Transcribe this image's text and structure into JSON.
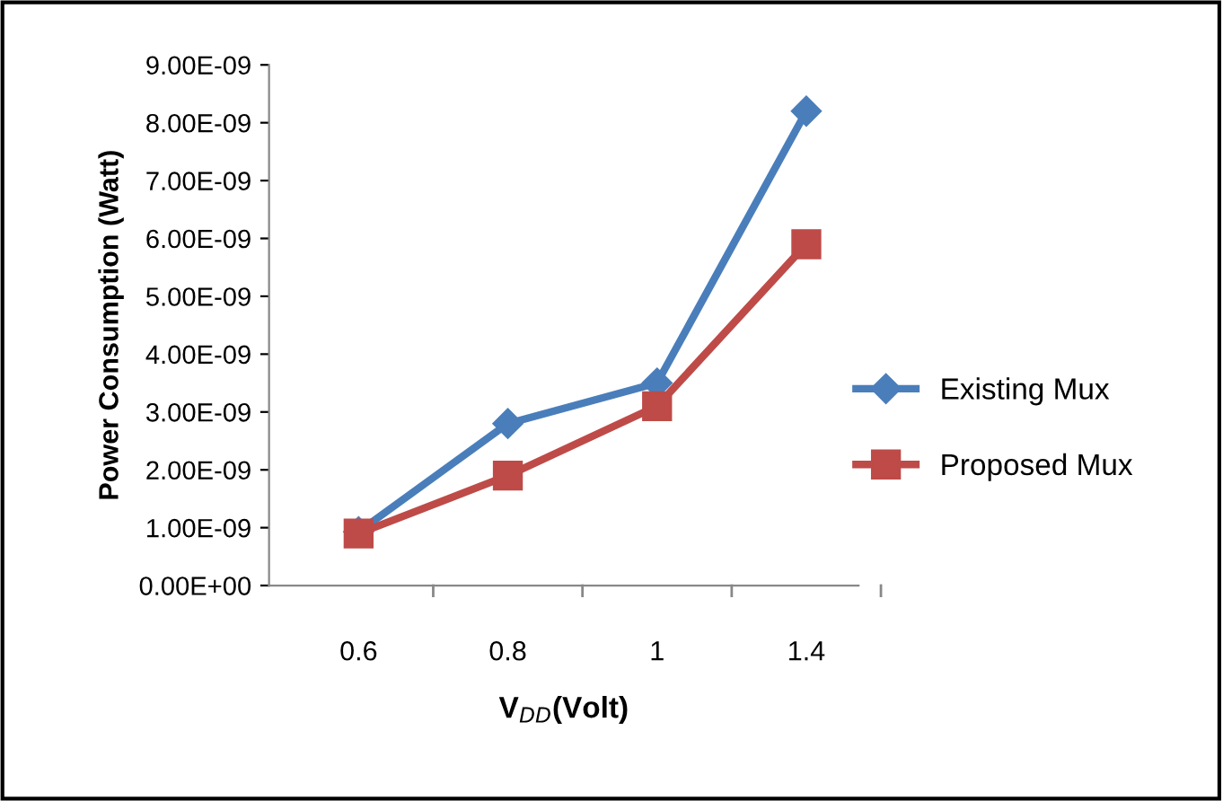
{
  "chart_data": {
    "type": "line",
    "xlabel": "V$_{DD}$(Volt)",
    "ylabel": "Power Consumption (Watt)",
    "categories": [
      "0.6",
      "0.8",
      "1",
      "1.4"
    ],
    "series": [
      {
        "name": "Existing Mux",
        "color": "#4a7ebb",
        "marker": "diamond",
        "values": [
          9.3e-10,
          2.8e-09,
          3.5e-09,
          8.2e-09
        ]
      },
      {
        "name": "Proposed Mux",
        "color": "#be4b48",
        "marker": "square",
        "values": [
          9e-10,
          1.9e-09,
          3.1e-09,
          5.9e-09
        ]
      }
    ],
    "ylim": [
      0,
      9e-09
    ],
    "yticks": [
      {
        "value": 0,
        "label": "0.00E+00"
      },
      {
        "value": 1e-09,
        "label": "1.00E-09"
      },
      {
        "value": 2e-09,
        "label": "2.00E-09"
      },
      {
        "value": 3e-09,
        "label": "3.00E-09"
      },
      {
        "value": 4e-09,
        "label": "4.00E-09"
      },
      {
        "value": 5e-09,
        "label": "5.00E-09"
      },
      {
        "value": 6e-09,
        "label": "6.00E-09"
      },
      {
        "value": 7e-09,
        "label": "7.00E-09"
      },
      {
        "value": 8e-09,
        "label": "8.00E-09"
      },
      {
        "value": 9e-09,
        "label": "9.00E-09"
      }
    ],
    "grid": false,
    "legend": "right",
    "line_style": "solid"
  }
}
